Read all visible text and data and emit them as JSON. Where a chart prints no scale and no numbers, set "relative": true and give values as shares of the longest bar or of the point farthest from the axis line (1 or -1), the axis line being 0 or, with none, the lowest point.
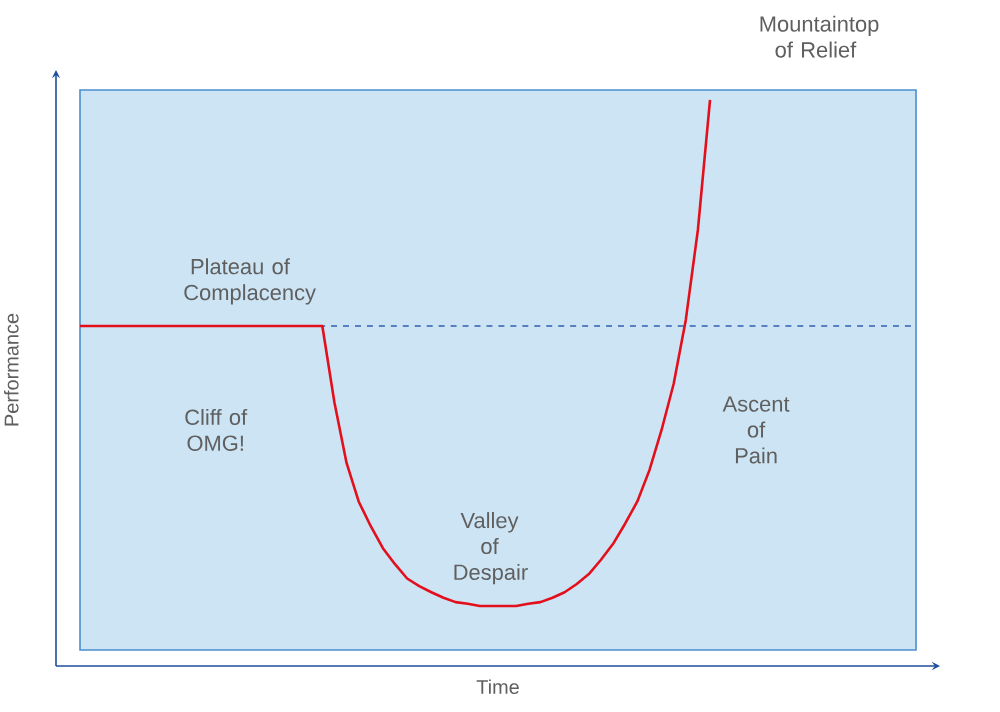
{
  "chart_data": {
    "type": "line",
    "relative": true,
    "xlabel": "Time",
    "ylabel": "Performance",
    "color": "#e3101c",
    "categories": [
      null,
      null,
      null,
      null,
      null,
      null,
      null,
      null,
      null,
      null,
      null,
      null,
      null,
      null,
      null,
      null,
      null,
      null,
      null,
      null,
      null,
      null,
      null,
      null,
      null,
      null,
      null,
      null,
      null,
      null,
      null,
      null,
      null,
      null,
      null,
      null,
      null,
      null,
      null,
      null,
      null,
      null,
      null,
      null,
      null,
      null,
      null,
      null,
      null,
      null,
      null,
      null,
      null,
      null,
      null,
      null,
      null,
      null,
      null,
      null,
      null,
      null,
      null,
      null,
      null,
      null,
      null,
      null,
      null,
      null
    ],
    "values": [
      0.589,
      0.589,
      0.589,
      0.589,
      0.589,
      0.589,
      0.589,
      0.589,
      0.589,
      0.589,
      0.589,
      0.589,
      0.589,
      0.589,
      0.589,
      0.589,
      0.589,
      0.589,
      0.589,
      0.589,
      0.589,
      0.45,
      0.34,
      0.27,
      0.225,
      0.185,
      0.156,
      0.13,
      0.116,
      0.105,
      0.095,
      0.087,
      0.084,
      0.08,
      0.08,
      0.08,
      0.08,
      0.084,
      0.087,
      0.095,
      0.105,
      0.12,
      0.138,
      0.164,
      0.193,
      0.23,
      0.27,
      0.327,
      0.4,
      0.484,
      0.6,
      0.764,
      1.0,
      null,
      null,
      null,
      null,
      null,
      null,
      null,
      null,
      null,
      null,
      null,
      null,
      null,
      null,
      null,
      null,
      null
    ],
    "ref_lines": [
      {
        "axis": "y",
        "value": 0.589,
        "color": "#2f5fae",
        "line_style": "dashed"
      }
    ],
    "annotations": [
      "Plateau of Complacency",
      "Cliff of OMG!",
      "Valley of Despair",
      "Ascent of Pain",
      "Mountaintop of Relief"
    ]
  }
}
